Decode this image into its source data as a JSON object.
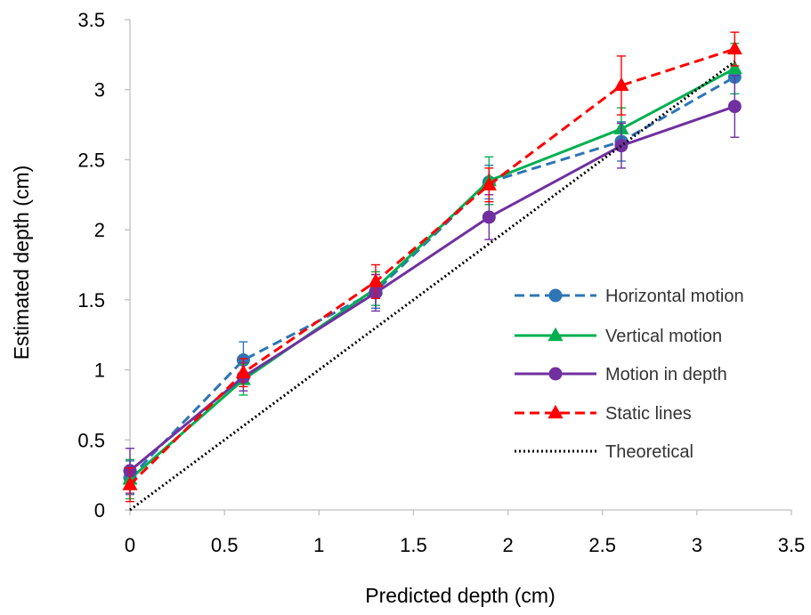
{
  "chart_data": {
    "type": "line",
    "title": "",
    "xlabel": "Predicted depth (cm)",
    "ylabel": "Estimated depth (cm)",
    "xlim": [
      0,
      3.5
    ],
    "ylim": [
      0,
      3.5
    ],
    "xticks": [
      0,
      0.5,
      1,
      1.5,
      2,
      2.5,
      3,
      3.5
    ],
    "yticks": [
      0,
      0.5,
      1,
      1.5,
      2,
      2.5,
      3,
      3.5
    ],
    "xtick_labels": [
      "0",
      "0.5",
      "1",
      "1.5",
      "2",
      "2.5",
      "3",
      "3.5"
    ],
    "ytick_labels": [
      "0",
      "0.5",
      "1",
      "1.5",
      "2",
      "2.5",
      "3",
      "3.5"
    ],
    "grid": false,
    "legend_position": "right",
    "series": [
      {
        "name": "Horizontal motion",
        "color": "#2e75b6",
        "dash": "dashed",
        "marker": "circle",
        "x": [
          0,
          0.6,
          1.3,
          1.9,
          2.6,
          3.2
        ],
        "y": [
          0.23,
          1.07,
          1.56,
          2.34,
          2.63,
          3.09
        ],
        "err": [
          0.12,
          0.13,
          0.12,
          0.12,
          0.14,
          0.19
        ]
      },
      {
        "name": "Vertical motion",
        "color": "#00b050",
        "dash": "solid",
        "marker": "triangle",
        "x": [
          0,
          0.6,
          1.3,
          1.9,
          2.6,
          3.2
        ],
        "y": [
          0.22,
          0.93,
          1.58,
          2.35,
          2.72,
          3.15
        ],
        "err": [
          0.14,
          0.11,
          0.12,
          0.17,
          0.15,
          0.18
        ]
      },
      {
        "name": "Motion in depth",
        "color": "#7030a0",
        "dash": "solid",
        "marker": "circle",
        "x": [
          0,
          0.6,
          1.3,
          1.9,
          2.6,
          3.2
        ],
        "y": [
          0.28,
          0.95,
          1.55,
          2.09,
          2.6,
          2.88
        ],
        "err": [
          0.16,
          0.1,
          0.13,
          0.16,
          0.16,
          0.22
        ]
      },
      {
        "name": "Static lines",
        "color": "#ff0000",
        "dash": "dashed",
        "marker": "triangle",
        "x": [
          0,
          0.6,
          1.3,
          1.9,
          2.6,
          3.2
        ],
        "y": [
          0.18,
          0.98,
          1.63,
          2.32,
          3.03,
          3.29
        ],
        "err": [
          0.12,
          0.1,
          0.12,
          0.12,
          0.21,
          0.12
        ]
      },
      {
        "name": "Theoretical",
        "color": "#000000",
        "dash": "dotted",
        "marker": "none",
        "x": [
          0,
          3.2
        ],
        "y": [
          0,
          3.2
        ],
        "err": []
      }
    ]
  }
}
